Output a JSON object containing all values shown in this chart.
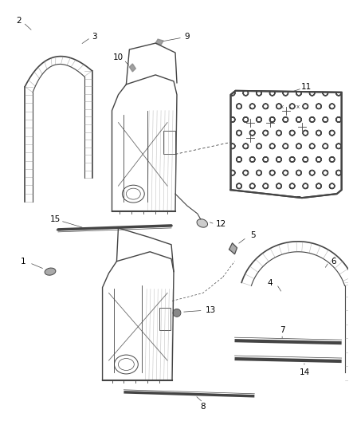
{
  "bg_color": "#ffffff",
  "line_color": "#444444",
  "label_color": "#000000",
  "gray_color": "#888888",
  "light_gray": "#aaaaaa"
}
